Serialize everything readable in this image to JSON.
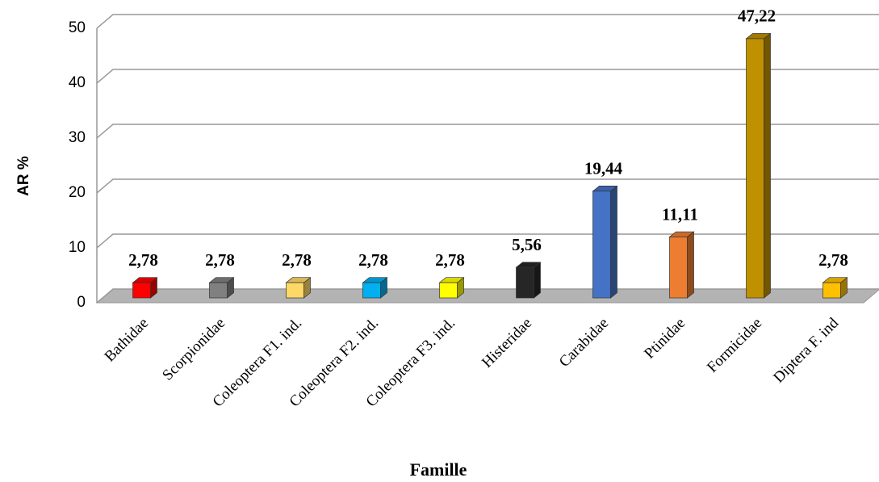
{
  "chart_data": {
    "type": "bar3d",
    "y_label": "AR %",
    "x_label": "Famille",
    "categories": [
      "Bathidae",
      "Scorpionidae",
      "Coleoptera F1. ind.",
      "Coleoptera F2. ind.",
      "Coleoptera F3. ind.",
      "Histeridae",
      "Carabidae",
      "Ptinidae",
      "Formicidae",
      "Diptera F. ind"
    ],
    "values": [
      2.78,
      2.78,
      2.78,
      2.78,
      2.78,
      5.56,
      19.44,
      11.11,
      47.22,
      2.78
    ],
    "value_labels": [
      "2,78",
      "2,78",
      "2,78",
      "2,78",
      "2,78",
      "5,56",
      "19,44",
      "11,11",
      "47,22",
      "2,78"
    ],
    "colors": [
      "#ff0000",
      "#808080",
      "#ffd966",
      "#00b0f0",
      "#ffff00",
      "#262626",
      "#4472c4",
      "#ed7d31",
      "#bf9000",
      "#ffc000"
    ],
    "ylim": [
      0,
      50
    ],
    "yticks": [
      0,
      10,
      20,
      30,
      40,
      50
    ],
    "grid": true
  }
}
